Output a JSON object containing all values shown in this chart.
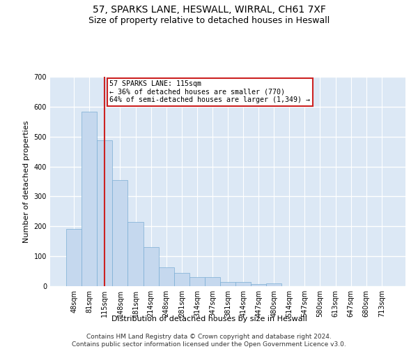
{
  "title": "57, SPARKS LANE, HESWALL, WIRRAL, CH61 7XF",
  "subtitle": "Size of property relative to detached houses in Heswall",
  "xlabel": "Distribution of detached houses by size in Heswall",
  "ylabel": "Number of detached properties",
  "categories": [
    "48sqm",
    "81sqm",
    "115sqm",
    "148sqm",
    "181sqm",
    "214sqm",
    "248sqm",
    "281sqm",
    "314sqm",
    "347sqm",
    "381sqm",
    "414sqm",
    "447sqm",
    "480sqm",
    "514sqm",
    "547sqm",
    "580sqm",
    "613sqm",
    "647sqm",
    "680sqm",
    "713sqm"
  ],
  "values": [
    192,
    583,
    487,
    355,
    215,
    131,
    63,
    44,
    31,
    31,
    15,
    15,
    8,
    10,
    0,
    0,
    0,
    0,
    0,
    0,
    0
  ],
  "bar_color": "#c5d8ee",
  "bar_edge_color": "#7aaed4",
  "vline_x_idx": 2,
  "vline_color": "#cc2222",
  "annotation_text": "57 SPARKS LANE: 115sqm\n← 36% of detached houses are smaller (770)\n64% of semi-detached houses are larger (1,349) →",
  "annotation_box_color": "#ffffff",
  "annotation_box_edge": "#cc2222",
  "ylim": [
    0,
    700
  ],
  "yticks": [
    0,
    100,
    200,
    300,
    400,
    500,
    600,
    700
  ],
  "background_color": "#dce8f5",
  "grid_color": "#ffffff",
  "title_fontsize": 10,
  "subtitle_fontsize": 9,
  "axis_label_fontsize": 8,
  "tick_fontsize": 7,
  "footer_text": "Contains HM Land Registry data © Crown copyright and database right 2024.\nContains public sector information licensed under the Open Government Licence v3.0.",
  "footer_fontsize": 6.5
}
